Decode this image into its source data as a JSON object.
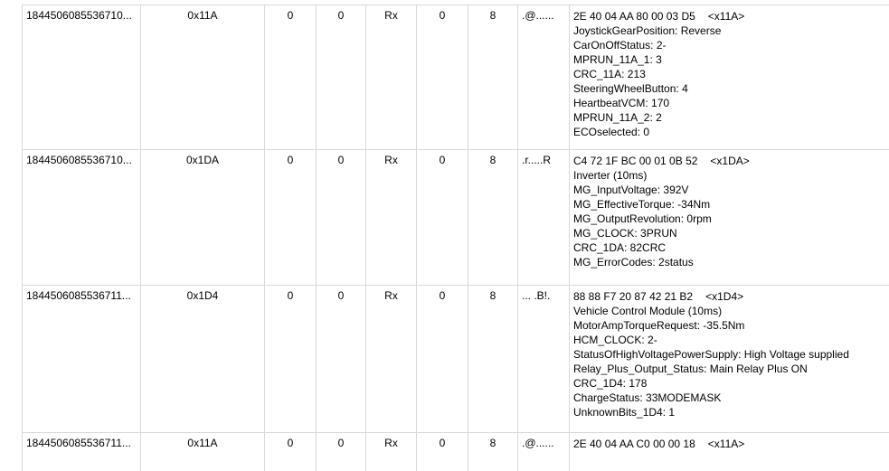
{
  "rows": [
    {
      "time": "1844506085536710...",
      "id": "0x11A",
      "c2": "0",
      "c3": "0",
      "dir": "Rx",
      "c5": "0",
      "dlc": "8",
      "ascii": ".@......",
      "hex": "2E 40 04 AA 80 00 03 D5",
      "tag": "<x11A>",
      "decoded": [
        "JoystickGearPosition: Reverse",
        "CarOnOffStatus: 2-",
        "MPRUN_11A_1: 3",
        "CRC_11A: 213",
        "SteeringWheelButton: 4",
        "HeartbeatVCM: 170",
        "MPRUN_11A_2: 2",
        "ECOselected: 0"
      ]
    },
    {
      "time": "1844506085536710...",
      "id": "0x1DA",
      "c2": "0",
      "c3": "0",
      "dir": "Rx",
      "c5": "0",
      "dlc": "8",
      "ascii": ".r.....R",
      "hex": "C4 72 1F BC 00 01 0B 52",
      "tag": "<x1DA>",
      "decoded": [
        "Inverter (10ms)",
        "MG_InputVoltage: 392V",
        "MG_EffectiveTorque: -34Nm",
        "MG_OutputRevolution: 0rpm",
        "MG_CLOCK: 3PRUN",
        "CRC_1DA: 82CRC",
        "MG_ErrorCodes: 2status"
      ]
    },
    {
      "time": "1844506085536711...",
      "id": "0x1D4",
      "c2": "0",
      "c3": "0",
      "dir": "Rx",
      "c5": "0",
      "dlc": "8",
      "ascii": "... .B!.",
      "hex": "88 88 F7 20 87 42 21 B2",
      "tag": "<x1D4>",
      "decoded": [
        "Vehicle Control Module (10ms)",
        "MotorAmpTorqueRequest: -35.5Nm",
        "HCM_CLOCK: 2-",
        "StatusOfHighVoltagePowerSupply: High Voltage supplied",
        "Relay_Plus_Output_Status: Main Relay Plus ON",
        "CRC_1D4: 178",
        "ChargeStatus: 33MODEMASK",
        "UnknownBits_1D4: 1"
      ]
    },
    {
      "time": "1844506085536711...",
      "id": "0x11A",
      "c2": "0",
      "c3": "0",
      "dir": "Rx",
      "c5": "0",
      "dlc": "8",
      "ascii": ".@......",
      "hex": "2E 40 04 AA C0 00 00 18",
      "tag": "<x11A>",
      "decoded": []
    }
  ]
}
